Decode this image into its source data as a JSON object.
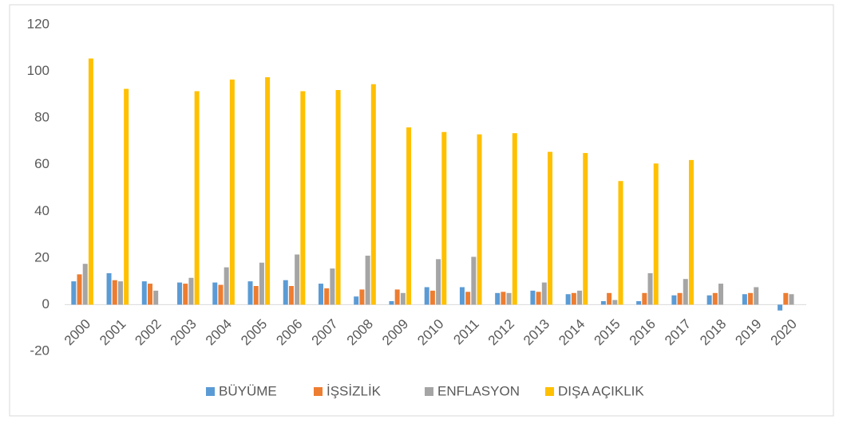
{
  "chart_data": {
    "type": "bar",
    "categories": [
      "2000",
      "2001",
      "2002",
      "2003",
      "2004",
      "2005",
      "2006",
      "2007",
      "2008",
      "2009",
      "2010",
      "2011",
      "2012",
      "2013",
      "2014",
      "2015",
      "2016",
      "2017",
      "2018",
      "2019",
      "2020"
    ],
    "series": [
      {
        "name": "BÜYÜME",
        "color": "#5b9bd5",
        "values": [
          10,
          13.5,
          10,
          9.5,
          9.5,
          10,
          10.5,
          9,
          3.5,
          1.5,
          7.5,
          7.5,
          5,
          6,
          4.5,
          1.5,
          1.5,
          4,
          4,
          4.5,
          -2.5
        ]
      },
      {
        "name": "İŞSİZLİK",
        "color": "#ed7d31",
        "values": [
          13,
          10.5,
          9,
          9,
          8.5,
          8,
          8,
          7,
          6.5,
          6.5,
          6,
          5.5,
          5.5,
          5.5,
          5,
          5,
          5,
          5,
          5,
          5,
          5
        ]
      },
      {
        "name": "ENFLASYON",
        "color": "#a5a5a5",
        "values": [
          17.5,
          10,
          6,
          11.5,
          16,
          18,
          21.5,
          15.5,
          21,
          5,
          19.5,
          20.5,
          5,
          9.5,
          6,
          2,
          13.5,
          11,
          9,
          7.5,
          4.5
        ]
      },
      {
        "name": "DIŞA AÇIKLIK",
        "color": "#ffc000",
        "values": [
          105.5,
          92.5,
          null,
          91.5,
          96.5,
          97.5,
          91.5,
          92,
          94.5,
          76,
          74,
          73,
          73.5,
          65.5,
          65,
          53,
          60.5,
          62,
          null,
          null,
          null
        ]
      }
    ],
    "ylim": [
      -20,
      120
    ],
    "yticks": [
      -20,
      0,
      20,
      40,
      60,
      80,
      100,
      120
    ],
    "grid": false,
    "legend": "bottom"
  }
}
